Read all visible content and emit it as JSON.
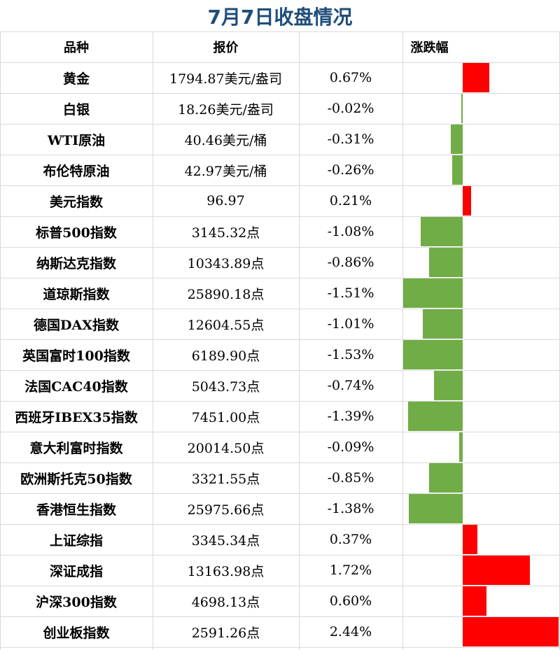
{
  "title": "7月7日收盘情况",
  "columns": {
    "variety": "品种",
    "price": "报价",
    "change": "涨跌幅"
  },
  "colors": {
    "title": "#1f4e79",
    "positive": "#ff0000",
    "negative": "#70ad47",
    "grid": "#d9d9d9"
  },
  "rows": [
    {
      "name": "黄金",
      "price": "1794.87美元/盎司",
      "change_text": "0.67%"
    },
    {
      "name": "白银",
      "price": "18.26美元/盎司",
      "change_text": "-0.02%"
    },
    {
      "name": "WTI原油",
      "price": "40.46美元/桶",
      "change_text": "-0.31%"
    },
    {
      "name": "布伦特原油",
      "price": "42.97美元/桶",
      "change_text": "-0.26%"
    },
    {
      "name": "美元指数",
      "price": "96.97",
      "change_text": "0.21%"
    },
    {
      "name": "标普500指数",
      "price": "3145.32点",
      "change_text": "-1.08%"
    },
    {
      "name": "纳斯达克指数",
      "price": "10343.89点",
      "change_text": "-0.86%"
    },
    {
      "name": "道琼斯指数",
      "price": "25890.18点",
      "change_text": "-1.51%"
    },
    {
      "name": "德国DAX指数",
      "price": "12604.55点",
      "change_text": "-1.01%"
    },
    {
      "name": "英国富时100指数",
      "price": "6189.90点",
      "change_text": "-1.53%"
    },
    {
      "name": "法国CAC40指数",
      "price": "5043.73点",
      "change_text": "-0.74%"
    },
    {
      "name": "西班牙IBEX35指数",
      "price": "7451.00点",
      "change_text": "-1.39%"
    },
    {
      "name": "意大利富时指数",
      "price": "20014.50点",
      "change_text": "-0.09%"
    },
    {
      "name": "欧洲斯托克50指数",
      "price": "3321.55点",
      "change_text": "-0.85%"
    },
    {
      "name": "香港恒生指数",
      "price": "25975.66点",
      "change_text": "-1.38%"
    },
    {
      "name": "上证综指",
      "price": "3345.34点",
      "change_text": "0.37%"
    },
    {
      "name": "深证成指",
      "price": "13163.98点",
      "change_text": "1.72%"
    },
    {
      "name": "沪深300指数",
      "price": "4698.13点",
      "change_text": "0.60%"
    },
    {
      "name": "创业板指数",
      "price": "2591.26点",
      "change_text": "2.44%"
    }
  ],
  "chart_data": {
    "type": "bar",
    "categories": [
      "黄金",
      "白银",
      "WTI原油",
      "布伦特原油",
      "美元指数",
      "标普500指数",
      "纳斯达克指数",
      "道琼斯指数",
      "德国DAX指数",
      "英国富时100指数",
      "法国CAC40指数",
      "西班牙IBEX35指数",
      "意大利富时指数",
      "欧洲斯托克50指数",
      "香港恒生指数",
      "上证综指",
      "深证成指",
      "沪深300指数",
      "创业板指数"
    ],
    "values": [
      0.67,
      -0.02,
      -0.31,
      -0.26,
      0.21,
      -1.08,
      -0.86,
      -1.51,
      -1.01,
      -1.53,
      -0.74,
      -1.39,
      -0.09,
      -0.85,
      -1.38,
      0.37,
      1.72,
      0.6,
      2.44
    ],
    "title": "7月7日收盘情况",
    "xlabel": "",
    "ylabel": "涨跌幅"
  }
}
